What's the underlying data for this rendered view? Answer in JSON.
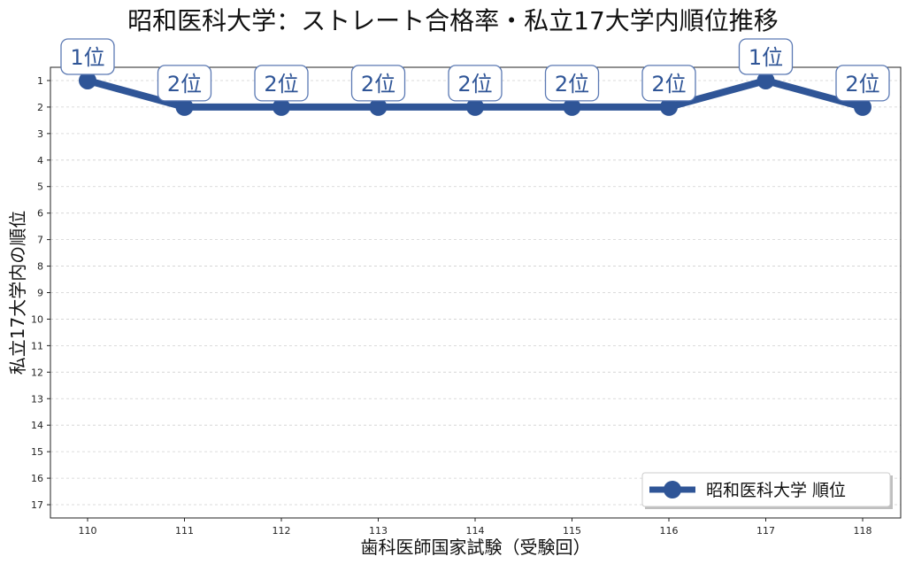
{
  "chart_data": {
    "type": "line",
    "title": "昭和医科大学：ストレート合格率・私立17大学内順位推移",
    "xlabel": "歯科医師国家試験（受験回）",
    "ylabel": "私立17大学内の順位",
    "categories": [
      "110",
      "111",
      "112",
      "113",
      "114",
      "115",
      "116",
      "117",
      "118"
    ],
    "series": [
      {
        "name": "昭和医科大学 順位",
        "values": [
          1,
          2,
          2,
          2,
          2,
          2,
          2,
          1,
          2
        ],
        "color": "#2f5597"
      }
    ],
    "data_labels": [
      "1位",
      "2位",
      "2位",
      "2位",
      "2位",
      "2位",
      "2位",
      "1位",
      "2位"
    ],
    "y_ticks": [
      1,
      2,
      3,
      4,
      5,
      6,
      7,
      8,
      9,
      10,
      11,
      12,
      13,
      14,
      15,
      16,
      17
    ],
    "ylim": [
      17.5,
      0.5
    ],
    "y_inverted": true,
    "grid": "horizontal dashed",
    "legend_position": "bottom-right"
  }
}
